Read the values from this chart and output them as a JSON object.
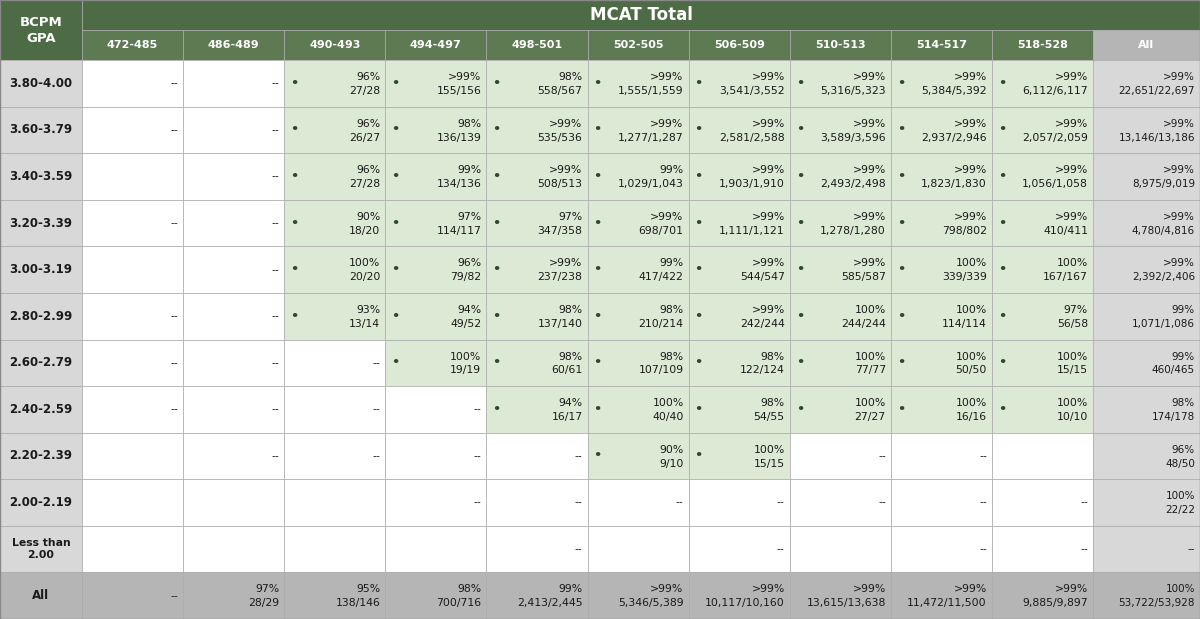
{
  "mcat_cols": [
    "472-485",
    "486-489",
    "490-493",
    "494-497",
    "498-501",
    "502-505",
    "506-509",
    "510-513",
    "514-517",
    "518-528",
    "All"
  ],
  "gpa_rows": [
    "3.80-4.00",
    "3.60-3.79",
    "3.40-3.59",
    "3.20-3.39",
    "3.00-3.19",
    "2.80-2.99",
    "2.60-2.79",
    "2.40-2.59",
    "2.20-2.39",
    "2.00-2.19",
    "Less than\n2.00",
    "All"
  ],
  "cells": [
    [
      "--",
      "--",
      "96%\n27/28",
      ">99%\n155/156",
      "98%\n558/567",
      ">99%\n1,555/1,559",
      ">99%\n3,541/3,552",
      ">99%\n5,316/5,323",
      ">99%\n5,384/5,392",
      ">99%\n6,112/6,117",
      ">99%\n22,651/22,697"
    ],
    [
      "--",
      "--",
      "96%\n26/27",
      "98%\n136/139",
      ">99%\n535/536",
      ">99%\n1,277/1,287",
      ">99%\n2,581/2,588",
      ">99%\n3,589/3,596",
      ">99%\n2,937/2,946",
      ">99%\n2,057/2,059",
      ">99%\n13,146/13,186"
    ],
    [
      "",
      "--",
      "96%\n27/28",
      "99%\n134/136",
      ">99%\n508/513",
      "99%\n1,029/1,043",
      ">99%\n1,903/1,910",
      ">99%\n2,493/2,498",
      ">99%\n1,823/1,830",
      ">99%\n1,056/1,058",
      ">99%\n8,975/9,019"
    ],
    [
      "--",
      "--",
      "90%\n18/20",
      "97%\n114/117",
      "97%\n347/358",
      ">99%\n698/701",
      ">99%\n1,111/1,121",
      ">99%\n1,278/1,280",
      ">99%\n798/802",
      ">99%\n410/411",
      ">99%\n4,780/4,816"
    ],
    [
      "",
      "--",
      "100%\n20/20",
      "96%\n79/82",
      ">99%\n237/238",
      "99%\n417/422",
      ">99%\n544/547",
      ">99%\n585/587",
      "100%\n339/339",
      "100%\n167/167",
      ">99%\n2,392/2,406"
    ],
    [
      "--",
      "--",
      "93%\n13/14",
      "94%\n49/52",
      "98%\n137/140",
      "98%\n210/214",
      ">99%\n242/244",
      "100%\n244/244",
      "100%\n114/114",
      "97%\n56/58",
      "99%\n1,071/1,086"
    ],
    [
      "--",
      "--",
      "--",
      "100%\n19/19",
      "98%\n60/61",
      "98%\n107/109",
      "98%\n122/124",
      "100%\n77/77",
      "100%\n50/50",
      "100%\n15/15",
      "99%\n460/465"
    ],
    [
      "--",
      "--",
      "--",
      "--",
      "94%\n16/17",
      "100%\n40/40",
      "98%\n54/55",
      "100%\n27/27",
      "100%\n16/16",
      "100%\n10/10",
      "98%\n174/178"
    ],
    [
      "",
      "--",
      "--",
      "--",
      "--",
      "90%\n9/10",
      "100%\n15/15",
      "--",
      "--",
      "",
      "96%\n48/50"
    ],
    [
      "",
      "",
      "",
      "--",
      "--",
      "--",
      "--",
      "--",
      "--",
      "--",
      "100%\n22/22"
    ],
    [
      "",
      "",
      "",
      "",
      "--",
      "",
      "--",
      "",
      "--",
      "--",
      "--"
    ],
    [
      "--",
      "97%\n28/29",
      "95%\n138/146",
      "98%\n700/716",
      "99%\n2,413/2,445",
      ">99%\n5,346/5,389",
      ">99%\n10,117/10,160",
      ">99%\n13,615/13,638",
      ">99%\n11,472/11,500",
      ">99%\n9,885/9,897",
      "100%\n53,722/53,928"
    ]
  ],
  "has_bullet": [
    [
      false,
      false,
      true,
      true,
      true,
      true,
      true,
      true,
      true,
      true,
      false
    ],
    [
      false,
      false,
      true,
      true,
      true,
      true,
      true,
      true,
      true,
      true,
      false
    ],
    [
      false,
      false,
      true,
      true,
      true,
      true,
      true,
      true,
      true,
      true,
      false
    ],
    [
      false,
      false,
      true,
      true,
      true,
      true,
      true,
      true,
      true,
      true,
      false
    ],
    [
      false,
      false,
      true,
      true,
      true,
      true,
      true,
      true,
      true,
      true,
      false
    ],
    [
      false,
      false,
      true,
      true,
      true,
      true,
      true,
      true,
      true,
      true,
      false
    ],
    [
      false,
      false,
      false,
      true,
      true,
      true,
      true,
      true,
      true,
      true,
      false
    ],
    [
      false,
      false,
      false,
      false,
      true,
      true,
      true,
      true,
      true,
      true,
      false
    ],
    [
      false,
      false,
      false,
      false,
      false,
      true,
      true,
      false,
      false,
      false,
      false
    ],
    [
      false,
      false,
      false,
      false,
      false,
      false,
      false,
      false,
      false,
      false,
      false
    ],
    [
      false,
      false,
      false,
      false,
      false,
      false,
      false,
      false,
      false,
      false,
      false
    ],
    [
      false,
      false,
      false,
      false,
      false,
      false,
      false,
      false,
      false,
      false,
      false
    ]
  ],
  "cell_bg": [
    [
      "white",
      "white",
      "green_light",
      "green_light",
      "green_light",
      "green_light",
      "green_light",
      "green_light",
      "green_light",
      "green_light",
      "gray_light"
    ],
    [
      "white",
      "white",
      "green_light",
      "green_light",
      "green_light",
      "green_light",
      "green_light",
      "green_light",
      "green_light",
      "green_light",
      "gray_light"
    ],
    [
      "white",
      "white",
      "green_light",
      "green_light",
      "green_light",
      "green_light",
      "green_light",
      "green_light",
      "green_light",
      "green_light",
      "gray_light"
    ],
    [
      "white",
      "white",
      "green_light",
      "green_light",
      "green_light",
      "green_light",
      "green_light",
      "green_light",
      "green_light",
      "green_light",
      "gray_light"
    ],
    [
      "white",
      "white",
      "green_light",
      "green_light",
      "green_light",
      "green_light",
      "green_light",
      "green_light",
      "green_light",
      "green_light",
      "gray_light"
    ],
    [
      "white",
      "white",
      "green_light",
      "green_light",
      "green_light",
      "green_light",
      "green_light",
      "green_light",
      "green_light",
      "green_light",
      "gray_light"
    ],
    [
      "white",
      "white",
      "white",
      "green_light",
      "green_light",
      "green_light",
      "green_light",
      "green_light",
      "green_light",
      "green_light",
      "gray_light"
    ],
    [
      "white",
      "white",
      "white",
      "white",
      "green_light",
      "green_light",
      "green_light",
      "green_light",
      "green_light",
      "green_light",
      "gray_light"
    ],
    [
      "white",
      "white",
      "white",
      "white",
      "white",
      "green_light",
      "green_light",
      "white",
      "white",
      "white",
      "gray_light"
    ],
    [
      "white",
      "white",
      "white",
      "white",
      "white",
      "white",
      "white",
      "white",
      "white",
      "white",
      "gray_light"
    ],
    [
      "white",
      "white",
      "white",
      "white",
      "white",
      "white",
      "white",
      "white",
      "white",
      "white",
      "gray_light"
    ],
    [
      "gray_med",
      "gray_med",
      "gray_med",
      "gray_med",
      "gray_med",
      "gray_med",
      "gray_med",
      "gray_med",
      "gray_med",
      "gray_med",
      "gray_med"
    ]
  ],
  "colors": {
    "header_dark": "#4d6b44",
    "header_medium": "#5d7a53",
    "green_light": "#dce9d5",
    "gray_light": "#d8d8d8",
    "gray_med": "#b5b5b5",
    "white": "#ffffff",
    "text_dark": "#1a1a1a",
    "border": "#aaaaaa",
    "bullet": "#2d4a28"
  }
}
